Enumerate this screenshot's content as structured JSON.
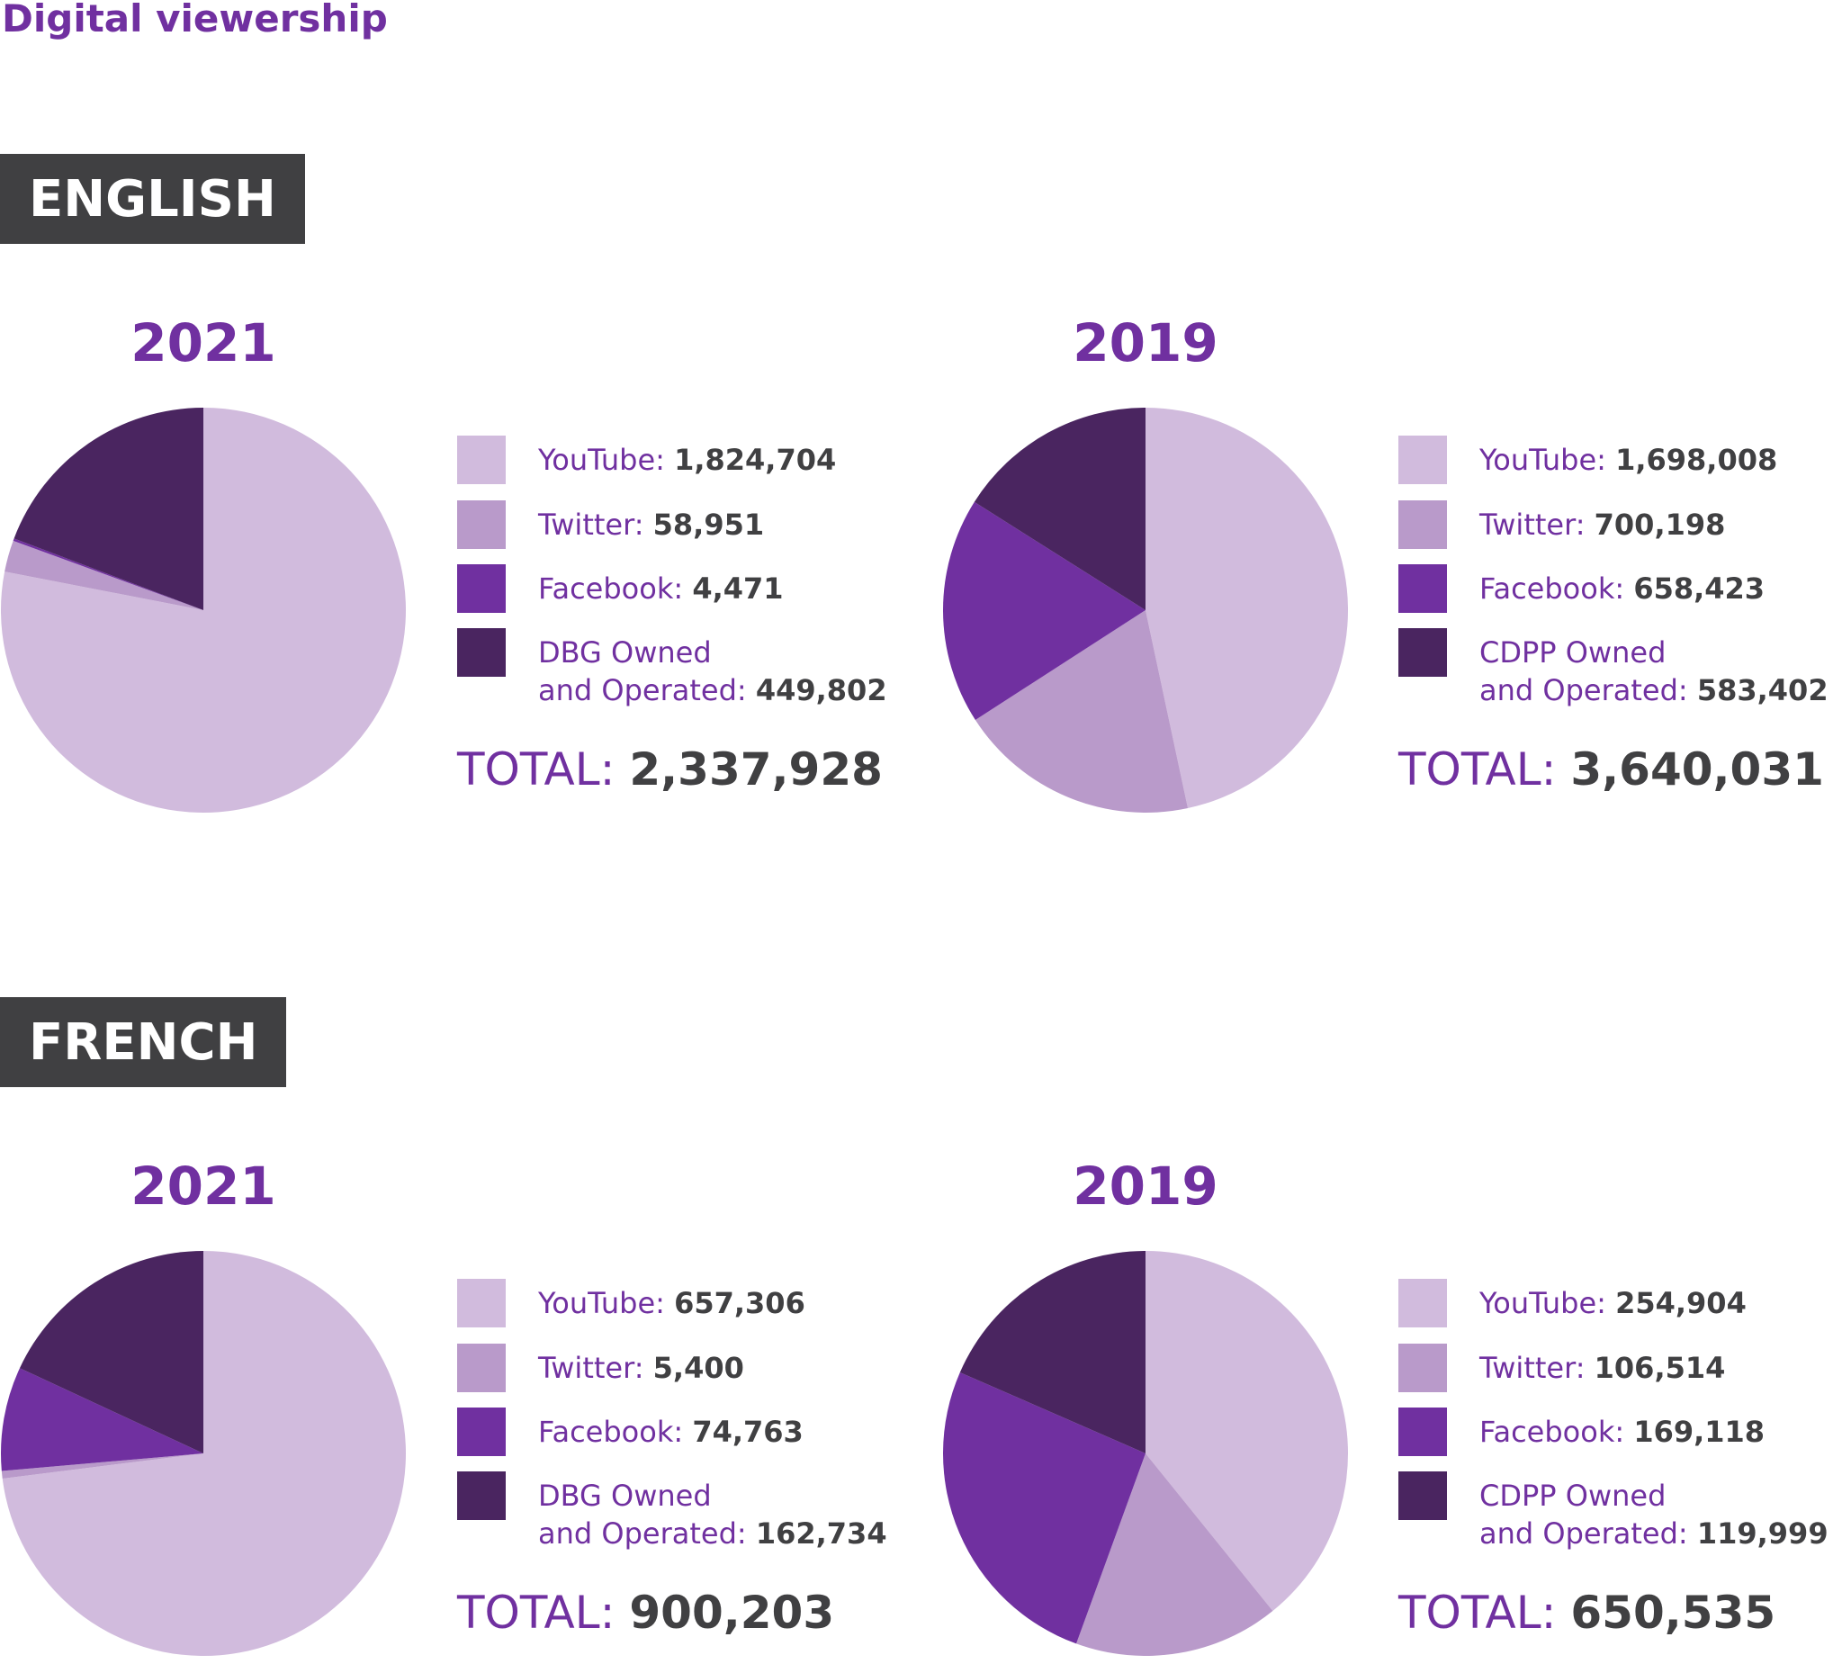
{
  "title": "Digital viewership",
  "colors": {
    "youtube": "#d1bbdd",
    "twitter": "#b99aca",
    "facebook": "#7030a0",
    "owned": "#4a2560",
    "text_accent": "#7030a0",
    "text_dark": "#404042"
  },
  "sections": [
    {
      "label": "ENGLISH",
      "panels": [
        {
          "year": "2021",
          "legend": [
            {
              "label": "YouTube:",
              "value": "1,824,704"
            },
            {
              "label": "Twitter:",
              "value": "58,951"
            },
            {
              "label": "Facebook:",
              "value": "4,471"
            },
            {
              "label": "DBG Owned",
              "label2": "and Operated:",
              "value": "449,802"
            }
          ],
          "total_label": "TOTAL:",
          "total_value": "2,337,928"
        },
        {
          "year": "2019",
          "legend": [
            {
              "label": "YouTube:",
              "value": "1,698,008"
            },
            {
              "label": "Twitter:",
              "value": "700,198"
            },
            {
              "label": "Facebook:",
              "value": "658,423"
            },
            {
              "label": "CDPP Owned",
              "label2": "and Operated:",
              "value": "583,402"
            }
          ],
          "total_label": "TOTAL:",
          "total_value": "3,640,031"
        }
      ]
    },
    {
      "label": "FRENCH",
      "panels": [
        {
          "year": "2021",
          "legend": [
            {
              "label": "YouTube:",
              "value": "657,306"
            },
            {
              "label": "Twitter:",
              "value": "5,400"
            },
            {
              "label": "Facebook:",
              "value": "74,763"
            },
            {
              "label": "DBG Owned",
              "label2": "and Operated:",
              "value": "162,734"
            }
          ],
          "total_label": "TOTAL:",
          "total_value": "900,203"
        },
        {
          "year": "2019",
          "legend": [
            {
              "label": "YouTube:",
              "value": "254,904"
            },
            {
              "label": "Twitter:",
              "value": "106,514"
            },
            {
              "label": "Facebook:",
              "value": "169,118"
            },
            {
              "label": "CDPP Owned",
              "label2": "and Operated:",
              "value": "119,999"
            }
          ],
          "total_label": "TOTAL:",
          "total_value": "650,535"
        }
      ]
    }
  ],
  "chart_data": [
    {
      "type": "pie",
      "title": "2021",
      "categories": [
        "YouTube",
        "Twitter",
        "Facebook",
        "DBG Owned and Operated"
      ],
      "values": [
        1824704,
        58951,
        4471,
        449802
      ]
    },
    {
      "type": "pie",
      "title": "2019",
      "categories": [
        "YouTube",
        "Twitter",
        "Facebook",
        "CDPP Owned and Operated"
      ],
      "values": [
        1698008,
        700198,
        658423,
        583402
      ]
    },
    {
      "type": "pie",
      "title": "2021",
      "categories": [
        "YouTube",
        "Twitter",
        "Facebook",
        "DBG Owned and Operated"
      ],
      "values": [
        657306,
        5400,
        74763,
        162734
      ]
    },
    {
      "type": "pie",
      "title": "2019",
      "categories": [
        "YouTube",
        "Twitter",
        "Facebook",
        "CDPP Owned and Operated"
      ],
      "values": [
        254904,
        106514,
        169118,
        119999
      ]
    }
  ]
}
